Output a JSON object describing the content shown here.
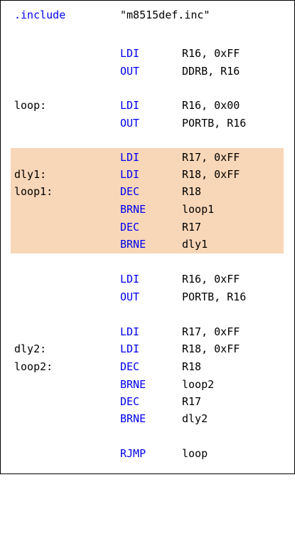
{
  "code": {
    "directive": {
      "keyword": ".include",
      "argument": "\"m8515def.inc\""
    },
    "lines": [
      {
        "label": "",
        "op": "LDI",
        "args": "R16, 0xFF"
      },
      {
        "label": "",
        "op": "OUT",
        "args": "DDRB, R16"
      },
      {
        "label": "loop:",
        "op": "LDI",
        "args": "R16, 0x00"
      },
      {
        "label": "",
        "op": "OUT",
        "args": "PORTB, R16"
      },
      {
        "label": "",
        "op": "LDI",
        "args": "R17, 0xFF"
      },
      {
        "label": "dly1:",
        "op": "LDI",
        "args": "R18, 0xFF"
      },
      {
        "label": "loop1:",
        "op": "DEC",
        "args": "R18"
      },
      {
        "label": "",
        "op": "BRNE",
        "args": "loop1"
      },
      {
        "label": "",
        "op": "DEC",
        "args": "R17"
      },
      {
        "label": "",
        "op": "BRNE",
        "args": "dly1"
      },
      {
        "label": "",
        "op": "LDI",
        "args": "R16, 0xFF"
      },
      {
        "label": "",
        "op": "OUT",
        "args": "PORTB, R16"
      },
      {
        "label": "",
        "op": "LDI",
        "args": "R17, 0xFF"
      },
      {
        "label": "dly2:",
        "op": "LDI",
        "args": "R18, 0xFF"
      },
      {
        "label": "loop2:",
        "op": "DEC",
        "args": "R18"
      },
      {
        "label": "",
        "op": "BRNE",
        "args": "loop2"
      },
      {
        "label": "",
        "op": "DEC",
        "args": "R17"
      },
      {
        "label": "",
        "op": "BRNE",
        "args": "dly2"
      },
      {
        "label": "",
        "op": "RJMP",
        "args": "loop"
      }
    ]
  },
  "colors": {
    "keyword": "#0000ee",
    "text": "#000000",
    "highlight": "#f8d6b8",
    "border": "#000000"
  }
}
